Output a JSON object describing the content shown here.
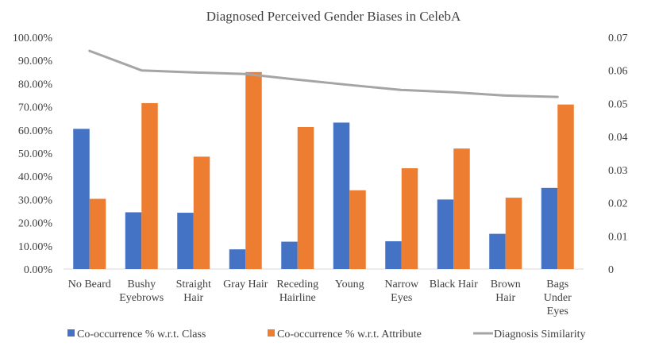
{
  "chart_data": {
    "type": "bar",
    "title": "Diagnosed Perceived Gender Biases in CelebA",
    "categories": [
      [
        "No Beard"
      ],
      [
        "Bushy",
        "Eyebrows"
      ],
      [
        "Straight",
        "Hair"
      ],
      [
        "Gray Hair"
      ],
      [
        "Receding",
        "Hairline"
      ],
      [
        "Young"
      ],
      [
        "Narrow",
        "Eyes"
      ],
      [
        "Black Hair"
      ],
      [
        "Brown",
        "Hair"
      ],
      [
        "Bags",
        "Under",
        "Eyes"
      ]
    ],
    "series": [
      {
        "name": "Co-occurrence % w.r.t. Class",
        "type": "bar",
        "axis": "left",
        "color": "#4472c4",
        "values": [
          60.5,
          24.5,
          24.3,
          8.5,
          11.8,
          63.2,
          12.0,
          30.0,
          15.2,
          35.0
        ]
      },
      {
        "name": "Co-occurrence % w.r.t. Attribute",
        "type": "bar",
        "axis": "left",
        "color": "#ed7d31",
        "values": [
          30.3,
          71.6,
          48.5,
          85.0,
          61.3,
          34.0,
          43.5,
          52.0,
          30.8,
          71.0
        ]
      },
      {
        "name": "Diagnosis Similarity",
        "type": "line",
        "axis": "right",
        "color": "#a5a5a5",
        "values": [
          0.0659,
          0.06,
          0.0594,
          0.0589,
          0.0572,
          0.0556,
          0.0541,
          0.0534,
          0.0524,
          0.052
        ]
      }
    ],
    "y_left": {
      "range": [
        0,
        100
      ],
      "ticks": [
        "0.00%",
        "10.00%",
        "20.00%",
        "30.00%",
        "40.00%",
        "50.00%",
        "60.00%",
        "70.00%",
        "80.00%",
        "90.00%",
        "100.00%"
      ]
    },
    "y_right": {
      "range": [
        0,
        0.07
      ],
      "ticks": [
        "0",
        "0.01",
        "0.02",
        "0.03",
        "0.04",
        "0.05",
        "0.06",
        "0.07"
      ]
    },
    "legend_position": "bottom",
    "grid": false
  }
}
